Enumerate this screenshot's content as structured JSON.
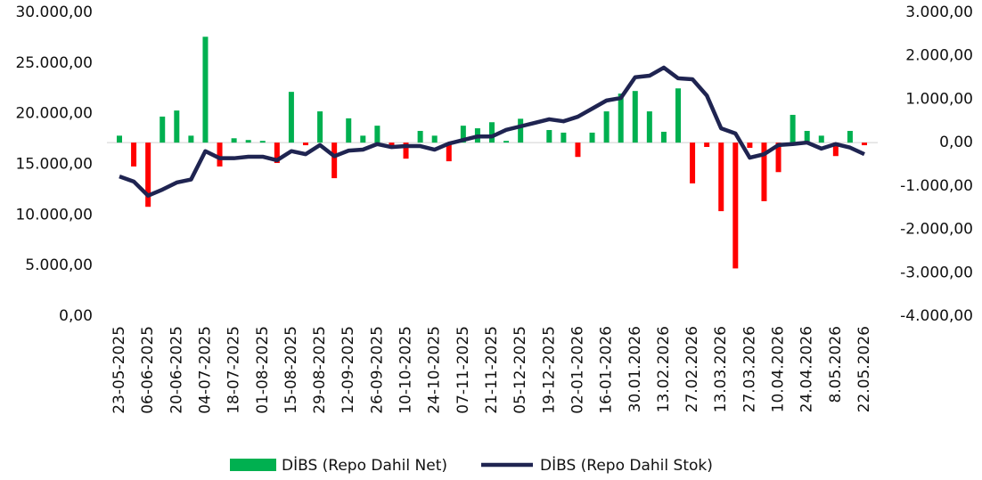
{
  "chart_data": {
    "type": "bar_line",
    "categories": [
      "23-05-2025",
      null,
      "06-06-2025",
      null,
      "20-06-2025",
      null,
      "04-07-2025",
      null,
      "18-07-2025",
      null,
      "01-08-2025",
      null,
      "15-08-2025",
      null,
      "29-08-2025",
      null,
      "12-09-2025",
      null,
      "26-09-2025",
      null,
      "10-10-2025",
      null,
      "24-10-2025",
      null,
      "07-11-2025",
      null,
      "21-11-2025",
      null,
      "05-12-2025",
      null,
      "19-12-2025",
      null,
      "02-01-2026",
      null,
      "16-01-2026",
      null,
      "30.01.2026",
      null,
      "13.02.2026",
      null,
      "27.02.2026",
      null,
      "13.03.2026",
      null,
      "27.03.2026",
      null,
      "10.04.2026",
      null,
      "24.04.2026",
      null,
      "8.05.2026",
      null,
      "22.05.2026"
    ],
    "series": [
      {
        "name": "DİBS (Repo Dahil Net)",
        "kind": "bar",
        "axis": "y2",
        "color": "#00b050",
        "negative_color": "#ff0000",
        "values": [
          160,
          -550,
          -1480,
          600,
          740,
          160,
          2440,
          -550,
          100,
          60,
          40,
          -470,
          1170,
          -60,
          720,
          -820,
          560,
          160,
          390,
          -100,
          -370,
          270,
          160,
          -430,
          390,
          330,
          470,
          40,
          550,
          0,
          290,
          230,
          -330,
          230,
          720,
          1130,
          1190,
          720,
          250,
          1250,
          -940,
          -100,
          -1580,
          -2900,
          -120,
          -1350,
          -680,
          640,
          270,
          160,
          -310,
          270,
          -60
        ]
      },
      {
        "name": "DİBS (Repo Dahil Stok)",
        "kind": "line",
        "color": "#1f2451",
        "values": [
          13800,
          13300,
          11900,
          12500,
          13200,
          13500,
          16300,
          15600,
          15600,
          15750,
          15750,
          15400,
          16300,
          16000,
          16900,
          15800,
          16350,
          16450,
          17000,
          16700,
          16800,
          16800,
          16450,
          17050,
          17400,
          17750,
          17750,
          18400,
          18750,
          19100,
          19450,
          19250,
          19700,
          20500,
          21300,
          21550,
          23600,
          23750,
          24550,
          23500,
          23400,
          21800,
          18550,
          18050,
          15650,
          16000,
          16900,
          17000,
          17150,
          16550,
          17000,
          16650,
          16000
        ]
      }
    ],
    "ylim": [
      0,
      30000
    ],
    "yticks": [
      {
        "value": 0,
        "label": "0,00"
      },
      {
        "value": 5000,
        "label": "5.000,00"
      },
      {
        "value": 10000,
        "label": "10.000,00"
      },
      {
        "value": 15000,
        "label": "15.000,00"
      },
      {
        "value": 20000,
        "label": "20.000,00"
      },
      {
        "value": 25000,
        "label": "25.000,00"
      },
      {
        "value": 30000,
        "label": "30.000,00"
      }
    ],
    "y2lim": [
      -4000,
      3000
    ],
    "y2ticks": [
      {
        "value": -4000,
        "label": "-4.000,00"
      },
      {
        "value": -3000,
        "label": "-3.000,00"
      },
      {
        "value": -2000,
        "label": "-2.000,00"
      },
      {
        "value": -1000,
        "label": "-1.000,00"
      },
      {
        "value": 0,
        "label": "0,00"
      },
      {
        "value": 1000,
        "label": "1.000,00"
      },
      {
        "value": 2000,
        "label": "2.000,00"
      },
      {
        "value": 3000,
        "label": "3.000,00"
      }
    ],
    "legend": "bottom"
  }
}
